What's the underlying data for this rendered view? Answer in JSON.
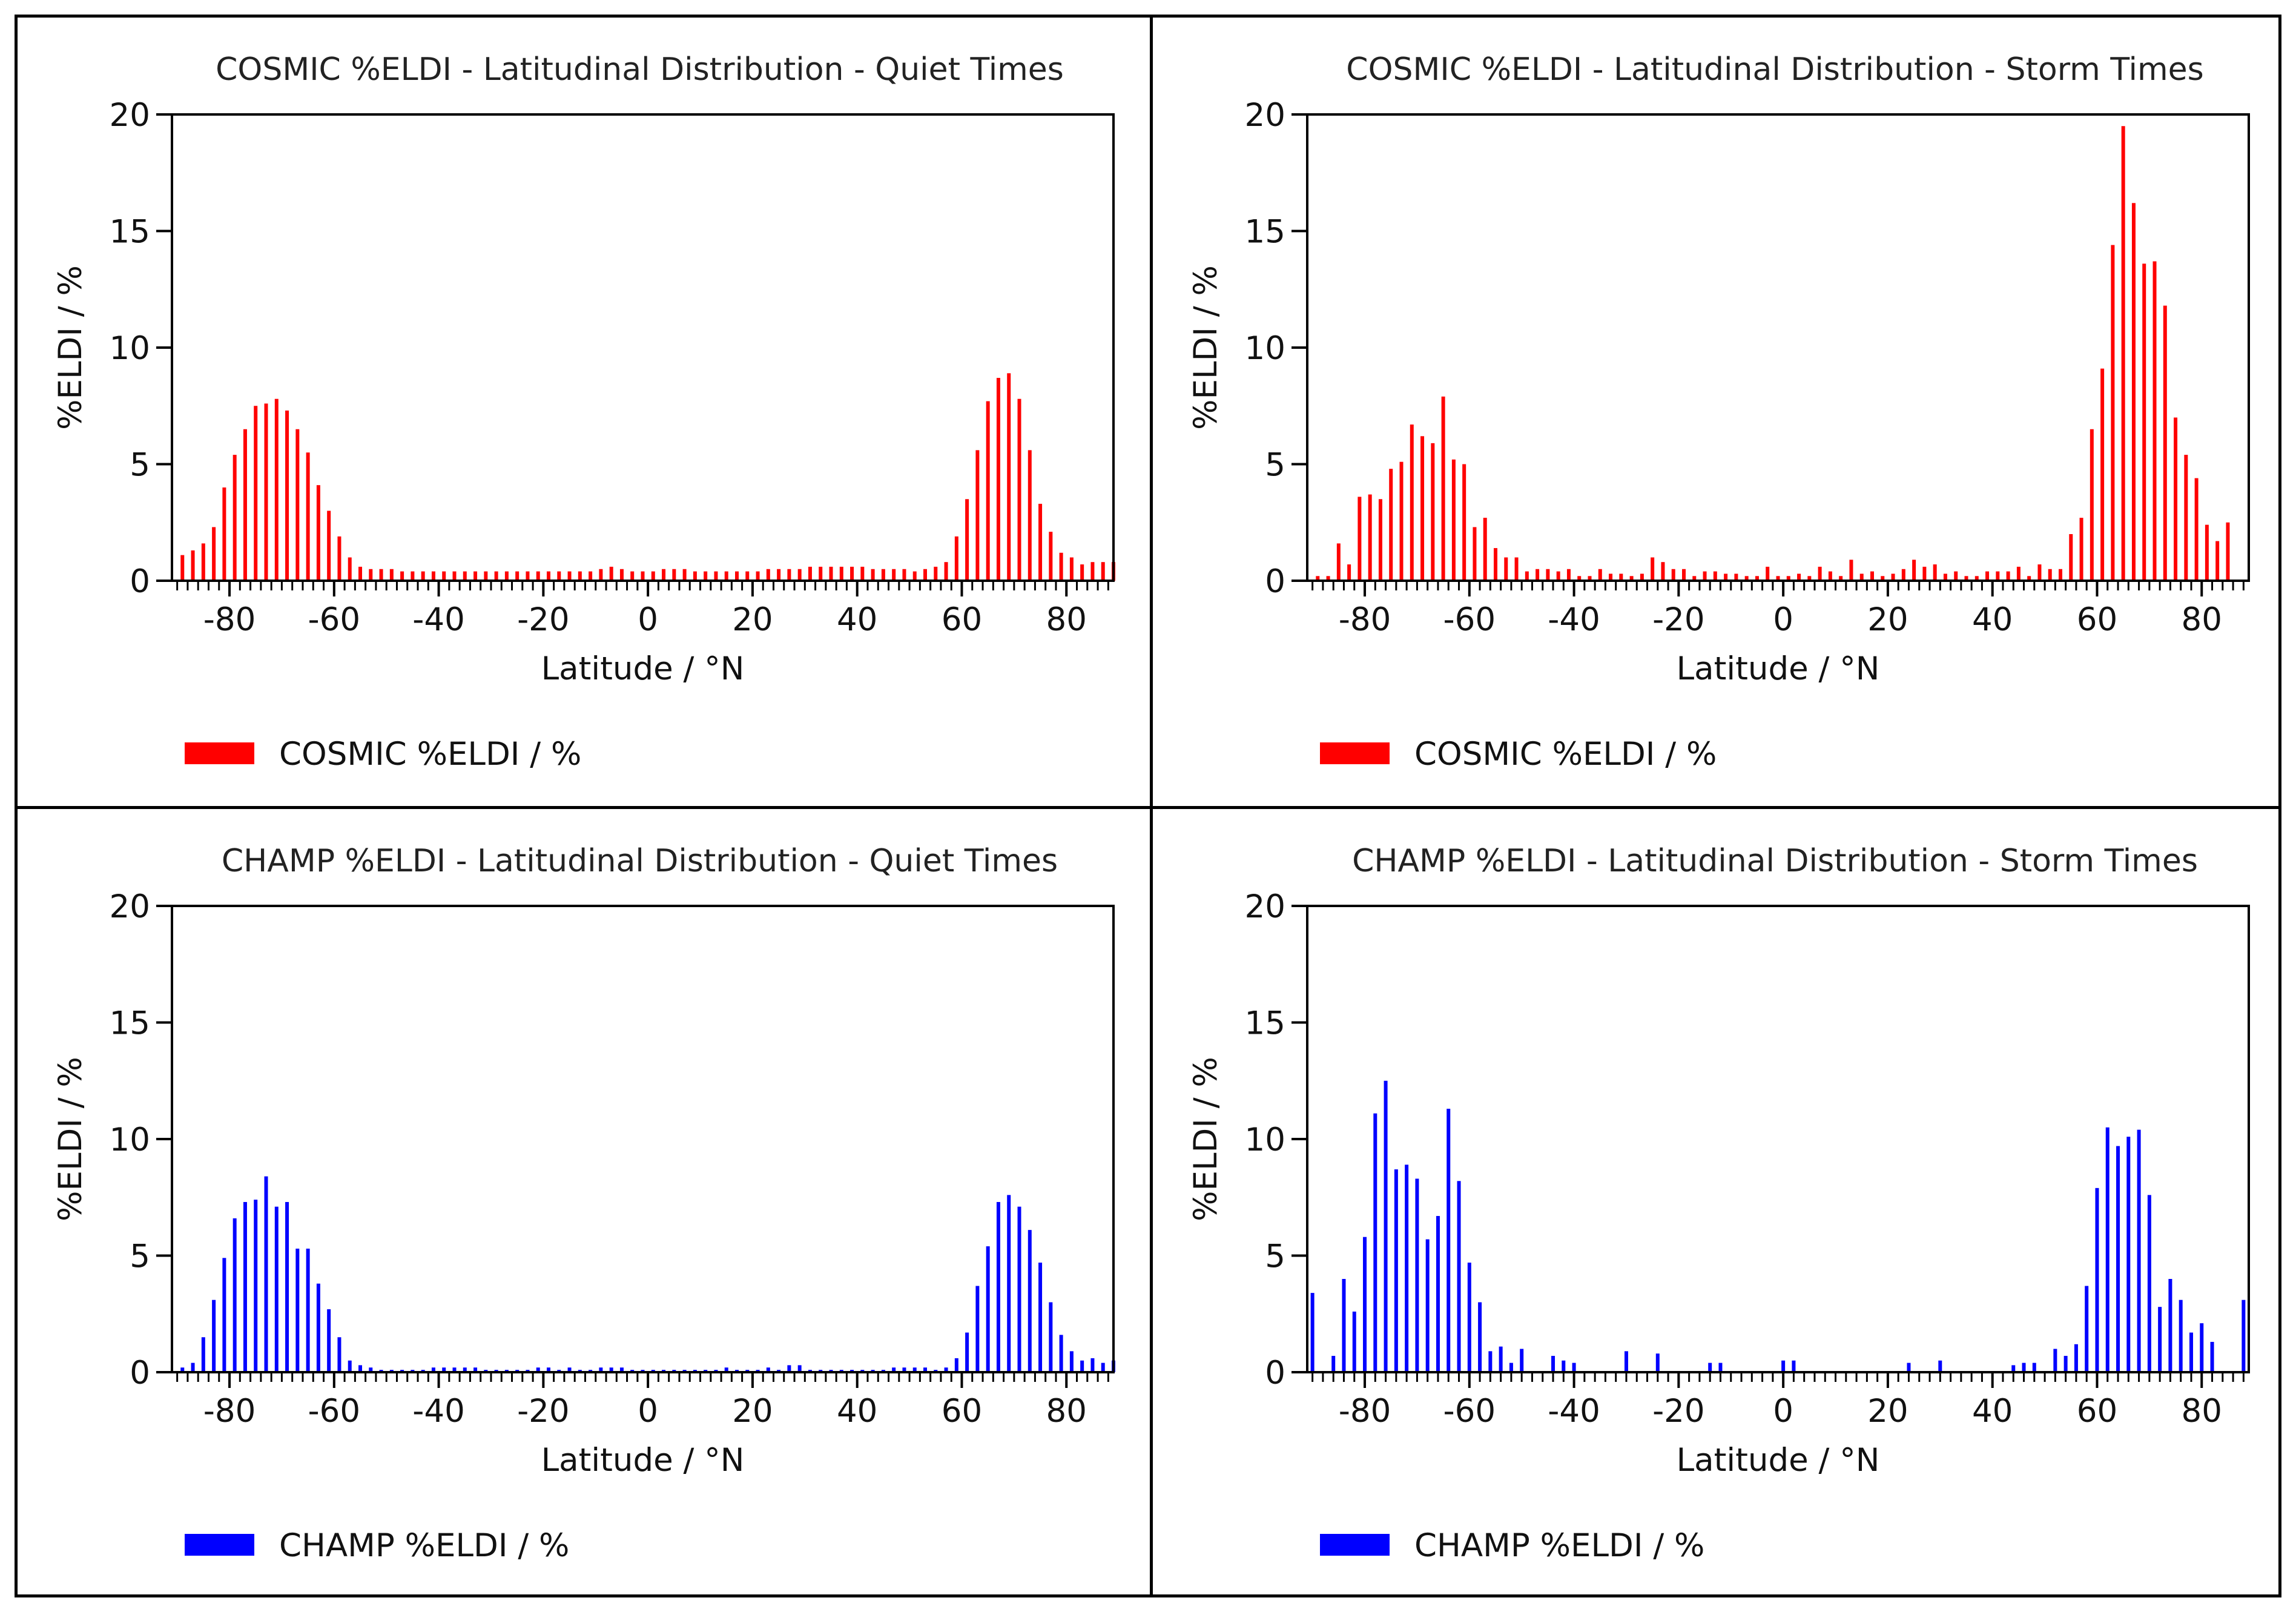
{
  "chart_data": [
    {
      "type": "bar",
      "title": "COSMIC %ELDI - Latitudinal Distribution - Quiet Times",
      "xlabel": "Latitude / °N",
      "ylabel": "%ELDI / %",
      "xlim": [
        -91,
        89
      ],
      "ylim": [
        0,
        20
      ],
      "xticks": [
        -80,
        -60,
        -40,
        -20,
        0,
        20,
        40,
        60,
        80
      ],
      "yticks": [
        0,
        5,
        10,
        15,
        20
      ],
      "legend": "COSMIC %ELDI / %",
      "color": "#ff0000",
      "x": [
        -89,
        -87,
        -85,
        -83,
        -81,
        -79,
        -77,
        -75,
        -73,
        -71,
        -69,
        -67,
        -65,
        -63,
        -61,
        -59,
        -57,
        -55,
        -53,
        -51,
        -49,
        -47,
        -45,
        -43,
        -41,
        -39,
        -37,
        -35,
        -33,
        -31,
        -29,
        -27,
        -25,
        -23,
        -21,
        -19,
        -17,
        -15,
        -13,
        -11,
        -9,
        -7,
        -5,
        -3,
        -1,
        1,
        3,
        5,
        7,
        9,
        11,
        13,
        15,
        17,
        19,
        21,
        23,
        25,
        27,
        29,
        31,
        33,
        35,
        37,
        39,
        41,
        43,
        45,
        47,
        49,
        51,
        53,
        55,
        57,
        59,
        61,
        63,
        65,
        67,
        69,
        71,
        73,
        75,
        77,
        79,
        81,
        83,
        85,
        87,
        89
      ],
      "values": [
        1.1,
        1.3,
        1.6,
        2.3,
        4.0,
        5.4,
        6.5,
        7.5,
        7.6,
        7.8,
        7.3,
        6.5,
        5.5,
        4.1,
        3.0,
        1.9,
        1.0,
        0.6,
        0.5,
        0.5,
        0.5,
        0.4,
        0.4,
        0.4,
        0.4,
        0.4,
        0.4,
        0.4,
        0.4,
        0.4,
        0.4,
        0.4,
        0.4,
        0.4,
        0.4,
        0.4,
        0.4,
        0.4,
        0.4,
        0.4,
        0.5,
        0.6,
        0.5,
        0.4,
        0.4,
        0.4,
        0.5,
        0.5,
        0.5,
        0.4,
        0.4,
        0.4,
        0.4,
        0.4,
        0.4,
        0.4,
        0.5,
        0.5,
        0.5,
        0.5,
        0.6,
        0.6,
        0.6,
        0.6,
        0.6,
        0.6,
        0.5,
        0.5,
        0.5,
        0.5,
        0.4,
        0.5,
        0.6,
        0.8,
        1.9,
        3.5,
        5.6,
        7.7,
        8.7,
        8.9,
        7.8,
        5.6,
        3.3,
        2.1,
        1.2,
        1.0,
        0.7,
        0.8,
        0.8,
        0.8
      ]
    },
    {
      "type": "bar",
      "title": "COSMIC %ELDI - Latitudinal Distribution - Storm Times",
      "xlabel": "Latitude / °N",
      "ylabel": "%ELDI / %",
      "xlim": [
        -91,
        89
      ],
      "ylim": [
        0,
        20
      ],
      "xticks": [
        -80,
        -60,
        -40,
        -20,
        0,
        20,
        40,
        60,
        80
      ],
      "yticks": [
        0,
        5,
        10,
        15,
        20
      ],
      "legend": "COSMIC %ELDI / %",
      "color": "#ff0000",
      "x": [
        -89,
        -87,
        -85,
        -83,
        -81,
        -79,
        -77,
        -75,
        -73,
        -71,
        -69,
        -67,
        -65,
        -63,
        -61,
        -59,
        -57,
        -55,
        -53,
        -51,
        -49,
        -47,
        -45,
        -43,
        -41,
        -39,
        -37,
        -35,
        -33,
        -31,
        -29,
        -27,
        -25,
        -23,
        -21,
        -19,
        -17,
        -15,
        -13,
        -11,
        -9,
        -7,
        -5,
        -3,
        -1,
        1,
        3,
        5,
        7,
        9,
        11,
        13,
        15,
        17,
        19,
        21,
        23,
        25,
        27,
        29,
        31,
        33,
        35,
        37,
        39,
        41,
        43,
        45,
        47,
        49,
        51,
        53,
        55,
        57,
        59,
        61,
        63,
        65,
        67,
        69,
        71,
        73,
        75,
        77,
        79,
        81,
        83
      ],
      "values": [
        0.2,
        0.2,
        1.6,
        0.7,
        3.6,
        3.7,
        3.5,
        4.8,
        5.1,
        6.7,
        6.2,
        5.9,
        7.9,
        5.2,
        5.0,
        2.3,
        2.7,
        1.4,
        1.0,
        1.0,
        0.4,
        0.5,
        0.5,
        0.4,
        0.5,
        0.2,
        0.2,
        0.5,
        0.3,
        0.3,
        0.2,
        0.3,
        1.0,
        0.8,
        0.5,
        0.5,
        0.2,
        0.4,
        0.4,
        0.3,
        0.3,
        0.2,
        0.2,
        0.6,
        0.2,
        0.2,
        0.3,
        0.2,
        0.6,
        0.4,
        0.2,
        0.9,
        0.3,
        0.4,
        0.2,
        0.3,
        0.5,
        0.9,
        0.6,
        0.7,
        0.3,
        0.4,
        0.2,
        0.2,
        0.4,
        0.4,
        0.4,
        0.6,
        0.2,
        0.7,
        0.5,
        0.5,
        2.0,
        2.7,
        6.5,
        9.1,
        14.4,
        19.5,
        16.2,
        13.6,
        13.7,
        11.8,
        7.0,
        5.4,
        4.4,
        2.4,
        1.7
      ],
      "note": "final bar at 85: 2.5",
      "extra_x": [
        85
      ],
      "extra_values": [
        2.5
      ]
    },
    {
      "type": "bar",
      "title": "CHAMP %ELDI - Latitudinal Distribution - Quiet Times",
      "xlabel": "Latitude / °N",
      "ylabel": "%ELDI / %",
      "xlim": [
        -91,
        89
      ],
      "ylim": [
        0,
        20
      ],
      "xticks": [
        -80,
        -60,
        -40,
        -20,
        0,
        20,
        40,
        60,
        80
      ],
      "yticks": [
        0,
        5,
        10,
        15,
        20
      ],
      "legend": "CHAMP %ELDI / %",
      "color": "#0000ff",
      "x": [
        -89,
        -87,
        -85,
        -83,
        -81,
        -79,
        -77,
        -75,
        -73,
        -71,
        -69,
        -67,
        -65,
        -63,
        -61,
        -59,
        -57,
        -55,
        -53,
        -51,
        -49,
        -47,
        -45,
        -43,
        -41,
        -39,
        -37,
        -35,
        -33,
        -31,
        -29,
        -27,
        -25,
        -23,
        -21,
        -19,
        -17,
        -15,
        -13,
        -11,
        -9,
        -7,
        -5,
        -3,
        -1,
        1,
        3,
        5,
        7,
        9,
        11,
        13,
        15,
        17,
        19,
        21,
        23,
        25,
        27,
        29,
        31,
        33,
        35,
        37,
        39,
        41,
        43,
        45,
        47,
        49,
        51,
        53,
        55,
        57,
        59,
        61,
        63,
        65,
        67,
        69,
        71,
        73,
        75,
        77,
        79,
        81,
        83,
        85,
        87,
        89
      ],
      "values": [
        0.2,
        0.4,
        1.5,
        3.1,
        4.9,
        6.6,
        7.3,
        7.4,
        8.4,
        7.1,
        7.3,
        5.3,
        5.3,
        3.8,
        2.7,
        1.5,
        0.5,
        0.3,
        0.2,
        0.1,
        0.1,
        0.1,
        0.1,
        0.1,
        0.2,
        0.2,
        0.2,
        0.2,
        0.2,
        0.1,
        0.1,
        0.1,
        0.1,
        0.1,
        0.2,
        0.2,
        0.1,
        0.2,
        0.1,
        0.1,
        0.2,
        0.2,
        0.2,
        0.1,
        0.1,
        0.1,
        0.1,
        0.1,
        0.1,
        0.1,
        0.1,
        0.1,
        0.2,
        0.1,
        0.1,
        0.1,
        0.2,
        0.1,
        0.3,
        0.3,
        0.1,
        0.1,
        0.1,
        0.1,
        0.1,
        0.1,
        0.1,
        0.1,
        0.2,
        0.2,
        0.2,
        0.2,
        0.1,
        0.2,
        0.6,
        1.7,
        3.7,
        5.4,
        7.3,
        7.6,
        7.1,
        6.1,
        4.7,
        3.0,
        1.6,
        0.9,
        0.5,
        0.6,
        0.4,
        0.5
      ]
    },
    {
      "type": "bar",
      "title": "CHAMP %ELDI - Latitudinal Distribution - Storm Times",
      "xlabel": "Latitude / °N",
      "ylabel": "%ELDI / %",
      "xlim": [
        -91,
        89
      ],
      "ylim": [
        0,
        20
      ],
      "xticks": [
        -80,
        -60,
        -40,
        -20,
        0,
        20,
        40,
        60,
        80
      ],
      "yticks": [
        0,
        5,
        10,
        15,
        20
      ],
      "legend": "CHAMP %ELDI / %",
      "color": "#0000ff",
      "x": [
        -90,
        -86,
        -84,
        -82,
        -80,
        -78,
        -76,
        -74,
        -72,
        -70,
        -68,
        -66,
        -64,
        -62,
        -60,
        -58,
        -56,
        -54,
        -52,
        -50,
        -44,
        -42,
        -40,
        -30,
        -24,
        -14,
        -12,
        0,
        2,
        24,
        30,
        44,
        46,
        48,
        52,
        54,
        56,
        58,
        60,
        62,
        64,
        66,
        68,
        70,
        72,
        74,
        76,
        78,
        80,
        82,
        88
      ],
      "values": [
        3.4,
        0.7,
        4.0,
        2.6,
        5.8,
        11.1,
        12.5,
        8.7,
        8.9,
        8.3,
        5.7,
        6.7,
        11.3,
        8.2,
        4.7,
        3.0,
        0.9,
        1.1,
        0.4,
        1.0,
        0.7,
        0.5,
        0.4,
        0.9,
        0.8,
        0.4,
        0.4,
        0.5,
        0.5,
        0.4,
        0.5,
        0.3,
        0.4,
        0.4,
        1.0,
        0.7,
        1.2,
        3.7,
        7.9,
        10.5,
        9.7,
        10.1,
        10.4,
        7.6,
        2.8,
        4.0,
        3.1,
        1.7,
        2.1,
        1.3,
        3.1
      ]
    }
  ]
}
